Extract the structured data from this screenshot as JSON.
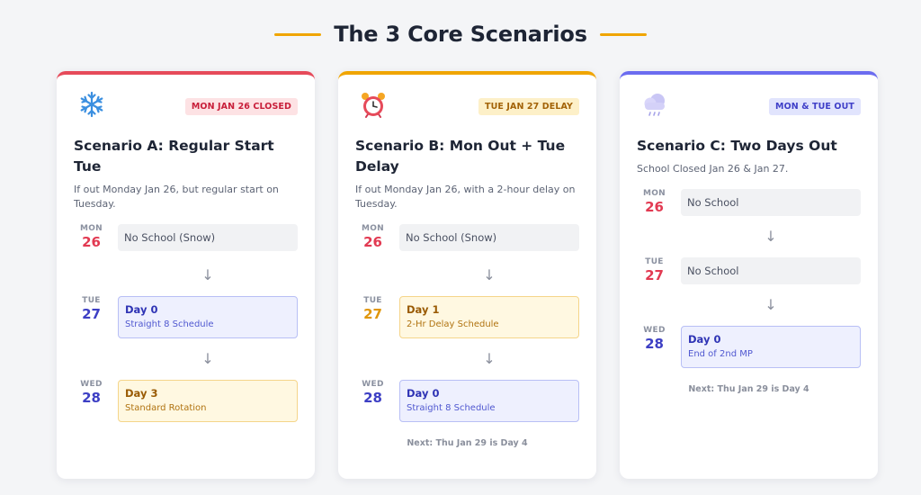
{
  "page": {
    "title": "The 3 Core Scenarios",
    "accent": "#f0a500"
  },
  "cards": [
    {
      "icon": "snowflake-icon",
      "badge": "MON JAN 26 CLOSED",
      "title": "Scenario A: Regular Start Tue",
      "desc": "If out Monday Jan 26, but regular start on Tuesday.",
      "days": [
        {
          "dow": "MON",
          "num": "26",
          "line1": "No School (Snow)",
          "line2": ""
        },
        {
          "dow": "TUE",
          "num": "27",
          "line1": "Day 0",
          "line2": "Straight 8 Schedule"
        },
        {
          "dow": "WED",
          "num": "28",
          "line1": "Day 3",
          "line2": "Standard Rotation"
        }
      ],
      "arrow": "↓",
      "note": ""
    },
    {
      "icon": "alarm-clock-icon",
      "badge": "TUE JAN 27 DELAY",
      "title": "Scenario B: Mon Out + Tue Delay",
      "desc": "If out Monday Jan 26, with a 2-hour delay on Tuesday.",
      "days": [
        {
          "dow": "MON",
          "num": "26",
          "line1": "No School (Snow)",
          "line2": ""
        },
        {
          "dow": "TUE",
          "num": "27",
          "line1": "Day 1",
          "line2": "2-Hr Delay Schedule"
        },
        {
          "dow": "WED",
          "num": "28",
          "line1": "Day 0",
          "line2": "Straight 8 Schedule"
        }
      ],
      "arrow": "↓",
      "note": "Next: Thu Jan 29 is Day 4"
    },
    {
      "icon": "cloud-icon",
      "badge": "MON & TUE OUT",
      "title": "Scenario C: Two Days Out",
      "desc": "School Closed Jan 26 & Jan 27.",
      "days": [
        {
          "dow": "MON",
          "num": "26",
          "line1": "No School",
          "line2": ""
        },
        {
          "dow": "TUE",
          "num": "27",
          "line1": "No School",
          "line2": ""
        },
        {
          "dow": "WED",
          "num": "28",
          "line1": "Day 0",
          "line2": "End of 2nd MP"
        }
      ],
      "arrow": "↓",
      "note": "Next: Thu Jan 29 is Day 4"
    }
  ]
}
